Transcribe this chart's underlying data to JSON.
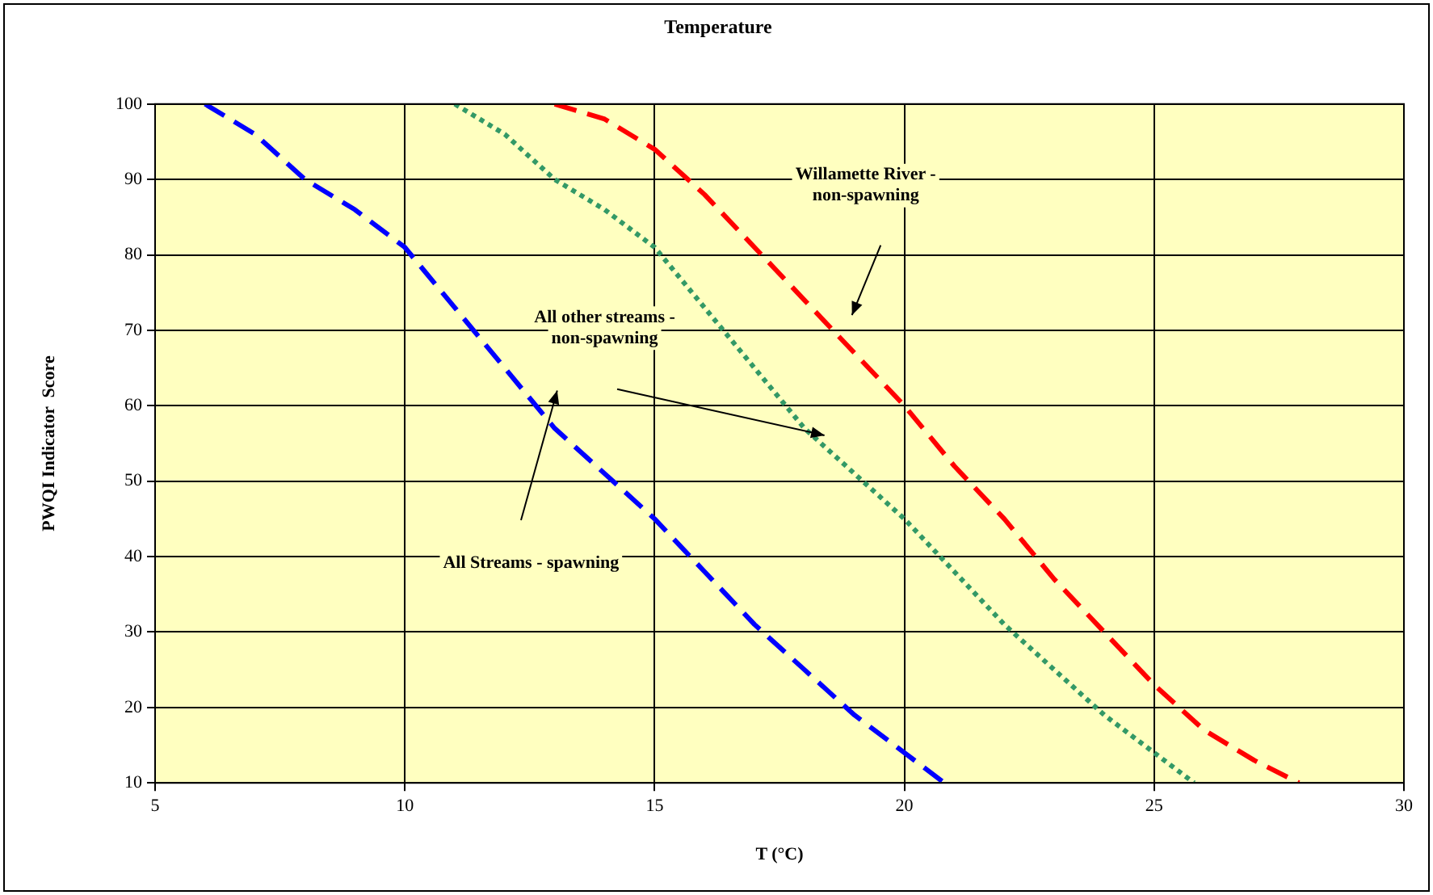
{
  "chart_data": {
    "type": "line",
    "title": "Temperature",
    "xlabel": "T (°C)",
    "ylabel": "PWQI Indicator  Score",
    "xlim": [
      5,
      30
    ],
    "xticks": [
      5,
      10,
      15,
      20,
      25,
      30
    ],
    "ylim": [
      10,
      100
    ],
    "yticks": [
      10,
      20,
      30,
      40,
      50,
      60,
      70,
      80,
      90,
      100
    ],
    "grid": true,
    "legend": false,
    "marker": "none",
    "series": [
      {
        "color": "#0000ff",
        "line_style": "dashed",
        "x": [
          6,
          7,
          8,
          9,
          10,
          11,
          12,
          13,
          14,
          15,
          16,
          17,
          18,
          19,
          20,
          20.8
        ],
        "values": [
          100,
          96,
          90,
          86,
          81,
          73,
          65,
          57,
          51,
          45,
          38,
          31,
          25,
          19,
          14,
          10
        ]
      },
      {
        "color": "#339966",
        "line_style": "dotted",
        "x": [
          11,
          12,
          13,
          14,
          15,
          16,
          17,
          18,
          19,
          20,
          21,
          22,
          23,
          24,
          25,
          25.8
        ],
        "values": [
          100,
          96,
          90,
          86,
          81,
          73,
          65,
          57,
          51,
          45,
          38,
          31,
          25,
          19,
          14,
          10
        ]
      },
      {
        "color": "#ff0000",
        "line_style": "dashed",
        "x": [
          13,
          14,
          15,
          16,
          17,
          18,
          19,
          20,
          21,
          22,
          23,
          24,
          25,
          26,
          27,
          27.9
        ],
        "values": [
          100,
          98,
          94,
          88,
          81,
          74,
          67,
          60,
          52,
          45,
          37,
          30,
          23,
          17,
          13,
          10
        ]
      }
    ],
    "annotations": [
      "Willamette River - non-spawning",
      "All other streams - non-spawning",
      "All Streams - spawning"
    ]
  }
}
